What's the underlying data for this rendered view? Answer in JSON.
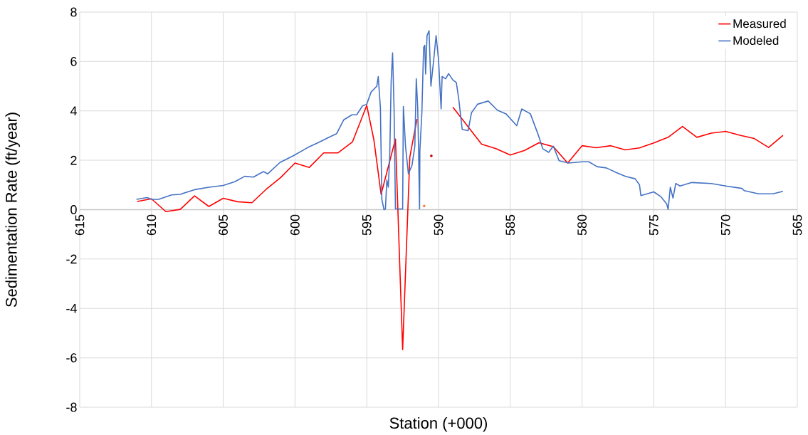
{
  "chart_data": {
    "type": "line",
    "xlabel": "Station (+000)",
    "ylabel": "Sedimentation Rate (ft/year)",
    "xlim": [
      615,
      565
    ],
    "ylim": [
      -8,
      8
    ],
    "xticks": [
      615,
      610,
      605,
      600,
      595,
      590,
      585,
      580,
      575,
      570,
      565
    ],
    "yticks": [
      -8,
      -6,
      -4,
      -2,
      0,
      2,
      4,
      6,
      8
    ],
    "grid": true,
    "legend": "top right",
    "line_style": "solid",
    "series": [
      {
        "name": "Measured",
        "color": "#ff0000",
        "x": [
          611,
          610,
          609,
          608,
          607,
          606,
          605,
          604,
          603,
          602,
          601,
          600,
          599,
          598,
          597,
          596,
          595,
          594.5,
          594,
          593,
          592.5,
          592,
          591.5,
          591,
          590.5,
          590,
          589,
          587,
          586,
          585,
          584,
          583,
          582,
          581,
          580,
          579,
          578,
          577,
          576,
          575,
          574,
          573,
          572,
          571,
          570,
          569,
          568,
          567,
          566
        ],
        "values": [
          0.33,
          0.44,
          -0.08,
          0.01,
          0.56,
          0.13,
          0.46,
          0.32,
          0.28,
          0.83,
          1.3,
          1.89,
          1.71,
          2.3,
          2.3,
          2.74,
          4.22,
          2.81,
          0.62,
          2.86,
          -5.67,
          2.13,
          3.67,
          null,
          null,
          null,
          4.15,
          2.65,
          2.47,
          2.21,
          2.4,
          2.71,
          2.55,
          1.89,
          2.59,
          2.51,
          2.59,
          2.42,
          2.5,
          2.7,
          2.93,
          3.37,
          2.93,
          3.1,
          3.17,
          3.01,
          2.88,
          2.52,
          3.01
        ]
      },
      {
        "name": "Modeled",
        "color": "#4472c4",
        "x": [
          611.05,
          610.3,
          610,
          609.5,
          608.6,
          608,
          607,
          606,
          605,
          604.2,
          603.5,
          602.9,
          602.2,
          601.9,
          601.05,
          600.07,
          599.1,
          598.4,
          597.6,
          597.1,
          596.6,
          596.03,
          595.7,
          595.3,
          595,
          594.7,
          594.3,
          594.2,
          594.05,
          593.95,
          593.8,
          593.7,
          593.6,
          593.5,
          593.4,
          593.3,
          593.2,
          593.1,
          593.0,
          592.5,
          592.45,
          592.3,
          592.1,
          591.85,
          591.65,
          591.55,
          591.45,
          591.4,
          591.32,
          591.3,
          591.16,
          591.04,
          590.96,
          590.9,
          590.8,
          590.66,
          590.53,
          590.3,
          590.17,
          590.0,
          589.82,
          589.75,
          589.5,
          589.3,
          589.0,
          588.76,
          588.6,
          588.35,
          587.94,
          587.7,
          587.28,
          586.54,
          585.9,
          585.3,
          584.55,
          584.2,
          583.6,
          583.07,
          582.74,
          582.33,
          582.0,
          581.6,
          580.93,
          580.0,
          579.53,
          578.95,
          578.3,
          577.6,
          576.97,
          576.3,
          576.0,
          575.9,
          575.0,
          574.5,
          574.1,
          574.0,
          573.85,
          573.66,
          573.47,
          573.17,
          572.35,
          571.0,
          570.0,
          568.86,
          568.7,
          567.7,
          566.7,
          566.0
        ],
        "values": [
          0.42,
          0.49,
          0.42,
          0.42,
          0.6,
          0.62,
          0.81,
          0.91,
          0.98,
          1.13,
          1.35,
          1.32,
          1.54,
          1.45,
          1.91,
          2.2,
          2.52,
          2.71,
          2.94,
          3.08,
          3.64,
          3.84,
          3.84,
          4.2,
          4.27,
          4.76,
          5.0,
          5.39,
          4.13,
          0.42,
          0.0,
          0.03,
          1.2,
          0.91,
          2.18,
          5.2,
          6.35,
          4.13,
          0.03,
          0.03,
          4.18,
          2.57,
          1.45,
          1.79,
          2.57,
          5.3,
          4.13,
          2.71,
          0.03,
          2.37,
          3.93,
          6.56,
          6.66,
          5.49,
          7.05,
          7.25,
          5.0,
          6.27,
          7.05,
          6.08,
          4.08,
          5.39,
          5.3,
          5.51,
          5.25,
          5.15,
          4.52,
          3.25,
          3.2,
          3.93,
          4.27,
          4.4,
          4.03,
          3.88,
          3.4,
          4.08,
          3.88,
          3.06,
          2.47,
          2.32,
          2.57,
          1.98,
          1.89,
          1.94,
          1.94,
          1.74,
          1.69,
          1.5,
          1.35,
          1.25,
          1.01,
          0.57,
          0.72,
          0.52,
          0.23,
          0.01,
          0.91,
          0.47,
          1.06,
          0.96,
          1.1,
          1.06,
          0.96,
          0.86,
          0.77,
          0.64,
          0.64,
          0.74
        ]
      },
      {
        "type": "scatter",
        "color": "#c00000",
        "x": [
          590.5
        ],
        "values": [
          2.18
        ]
      },
      {
        "type": "scatter",
        "color": "#ed7d31",
        "x": [
          591.0
        ],
        "values": [
          0.15
        ]
      }
    ]
  }
}
